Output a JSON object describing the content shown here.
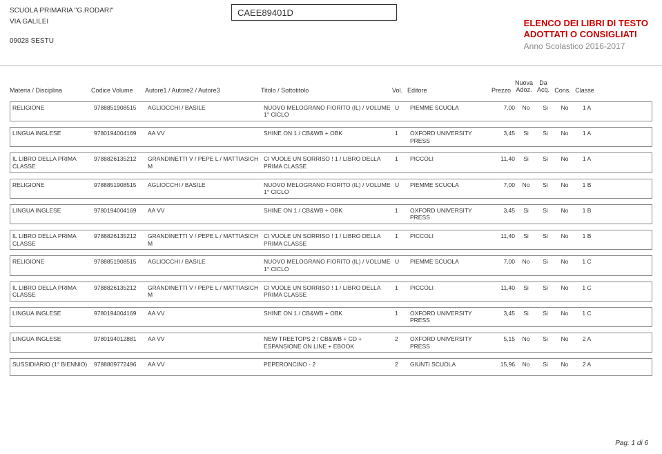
{
  "header": {
    "school_name": "SCUOLA PRIMARIA \"G.RODARI\"",
    "address": "VIA GALILEI",
    "city_code": "09028  SESTU",
    "school_code": "CAEE89401D",
    "title_line1": "ELENCO DEI LIBRI DI TESTO",
    "title_line2": "ADOTTATI O CONSIGLIATI",
    "year_line": "Anno Scolastico 2016-2017"
  },
  "columns": {
    "materia": "Materia / Disciplina",
    "codice": "Codice Volume",
    "autore": "Autore1 / Autore2 / Autore3",
    "titolo": "Titolo / Sottotitolo",
    "vol": "Vol.",
    "editore": "Editore",
    "prezzo": "Prezzo",
    "nuova1": "Nuova",
    "nuova2": "Adoz.",
    "da1": "Da",
    "da2": "Acq.",
    "cons": "Cons.",
    "classe": "Classe"
  },
  "rows": [
    {
      "materia": "RELIGIONE",
      "codice": "9788851908515",
      "autore": "AGLIOCCHI / BASILE",
      "titolo": "NUOVO MELOGRANO FIORITO (IL) / VOLUME 1° CICLO",
      "vol": "U",
      "editore": "PIEMME SCUOLA",
      "prezzo": "7,00",
      "nuova": "No",
      "da": "Si",
      "cons": "No",
      "classe": "1 A"
    },
    {
      "materia": "LINGUA INGLESE",
      "codice": "9780194004169",
      "autore": "AA VV",
      "titolo": "SHINE ON 1 / CB&WB + OBK",
      "vol": "1",
      "editore": "OXFORD UNIVERSITY PRESS",
      "prezzo": "3,45",
      "nuova": "Si",
      "da": "Si",
      "cons": "No",
      "classe": "1 A"
    },
    {
      "materia": "IL LIBRO DELLA PRIMA CLASSE",
      "codice": "9788826135212",
      "autore": "GRANDINETTI V / PEPE L / MATTIASICH M",
      "titolo": "CI VUOLE UN SORRISO ! 1 / LIBRO DELLA PRIMA CLASSE",
      "vol": "1",
      "editore": "PICCOLI",
      "prezzo": "11,40",
      "nuova": "Si",
      "da": "Si",
      "cons": "No",
      "classe": "1 A"
    },
    {
      "materia": "RELIGIONE",
      "codice": "9788851908515",
      "autore": "AGLIOCCHI / BASILE",
      "titolo": "NUOVO MELOGRANO FIORITO (IL) / VOLUME 1° CICLO",
      "vol": "U",
      "editore": "PIEMME SCUOLA",
      "prezzo": "7,00",
      "nuova": "No",
      "da": "Si",
      "cons": "No",
      "classe": "1 B"
    },
    {
      "materia": "LINGUA INGLESE",
      "codice": "9780194004169",
      "autore": "AA VV",
      "titolo": "SHINE ON 1 / CB&WB + OBK",
      "vol": "1",
      "editore": "OXFORD UNIVERSITY PRESS",
      "prezzo": "3,45",
      "nuova": "Si",
      "da": "Si",
      "cons": "No",
      "classe": "1 B"
    },
    {
      "materia": "IL LIBRO DELLA PRIMA CLASSE",
      "codice": "9788826135212",
      "autore": "GRANDINETTI V / PEPE L / MATTIASICH M",
      "titolo": "CI VUOLE UN SORRISO ! 1 / LIBRO DELLA PRIMA CLASSE",
      "vol": "1",
      "editore": "PICCOLI",
      "prezzo": "11,40",
      "nuova": "Si",
      "da": "Si",
      "cons": "No",
      "classe": "1 B"
    },
    {
      "materia": "RELIGIONE",
      "codice": "9788851908515",
      "autore": "AGLIOCCHI / BASILE",
      "titolo": "NUOVO MELOGRANO FIORITO (IL) / VOLUME 1° CICLO",
      "vol": "U",
      "editore": "PIEMME SCUOLA",
      "prezzo": "7,00",
      "nuova": "No",
      "da": "Si",
      "cons": "No",
      "classe": "1 C"
    },
    {
      "materia": "IL LIBRO DELLA PRIMA CLASSE",
      "codice": "9788826135212",
      "autore": "GRANDINETTI V / PEPE L / MATTIASICH M",
      "titolo": "CI VUOLE UN SORRISO ! 1 / LIBRO DELLA PRIMA CLASSE",
      "vol": "1",
      "editore": "PICCOLI",
      "prezzo": "11,40",
      "nuova": "Si",
      "da": "Si",
      "cons": "No",
      "classe": "1 C"
    },
    {
      "materia": "LINGUA INGLESE",
      "codice": "9780194004169",
      "autore": "AA VV",
      "titolo": "SHINE ON 1 / CB&WB + OBK",
      "vol": "1",
      "editore": "OXFORD UNIVERSITY PRESS",
      "prezzo": "3,45",
      "nuova": "Si",
      "da": "Si",
      "cons": "No",
      "classe": "1 C"
    },
    {
      "materia": "LINGUA INGLESE",
      "codice": "9780194012881",
      "autore": "AA VV",
      "titolo": "NEW TREETOPS 2 / CB&WB + CD + ESPANSIONE ON LINE + EBOOK",
      "vol": "2",
      "editore": "OXFORD UNIVERSITY PRESS",
      "prezzo": "5,15",
      "nuova": "No",
      "da": "Si",
      "cons": "No",
      "classe": "2 A"
    },
    {
      "materia": "SUSSIDIARIO (1° BIENNIO)",
      "codice": "9788809772496",
      "autore": "AA VV",
      "titolo": "PEPERONCINO - 2",
      "vol": "2",
      "editore": "GIUNTI SCUOLA",
      "prezzo": "15,96",
      "nuova": "No",
      "da": "Si",
      "cons": "No",
      "classe": "2 A"
    }
  ],
  "footer": {
    "page": "Pag. 1 di 6"
  },
  "style": {
    "page_bg": "#ffffff",
    "text_color": "#333333",
    "red": "#cc0000",
    "grey": "#8a8a8a",
    "border": "#888888",
    "font_family": "Arial",
    "header_font_size": 10,
    "body_font_size": 8.5,
    "title_font_size": 13
  }
}
